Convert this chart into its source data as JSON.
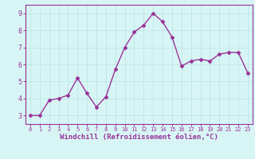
{
  "x": [
    0,
    1,
    2,
    3,
    4,
    5,
    6,
    7,
    8,
    9,
    10,
    11,
    12,
    13,
    14,
    15,
    16,
    17,
    18,
    19,
    20,
    21,
    22,
    23
  ],
  "y": [
    3.0,
    3.0,
    3.9,
    4.0,
    4.2,
    5.2,
    4.3,
    3.5,
    4.1,
    5.7,
    7.0,
    7.9,
    8.3,
    9.0,
    8.5,
    7.6,
    5.9,
    6.2,
    6.3,
    6.2,
    6.6,
    6.7,
    6.7,
    5.5
  ],
  "line_color": "#993399",
  "marker": "D",
  "marker_size": 2.5,
  "line_width": 1.0,
  "xlabel": "Windchill (Refroidissement éolien,°C)",
  "xlabel_fontsize": 6.5,
  "xlim": [
    -0.5,
    23.5
  ],
  "ylim": [
    2.5,
    9.5
  ],
  "yticks": [
    3,
    4,
    5,
    6,
    7,
    8,
    9
  ],
  "xticks": [
    0,
    1,
    2,
    3,
    4,
    5,
    6,
    7,
    8,
    9,
    10,
    11,
    12,
    13,
    14,
    15,
    16,
    17,
    18,
    19,
    20,
    21,
    22,
    23
  ],
  "background_color": "#d8f5f5",
  "grid_color": "#c0e8e8",
  "tick_color": "#993399",
  "label_color": "#993399",
  "axis_color": "#993399"
}
